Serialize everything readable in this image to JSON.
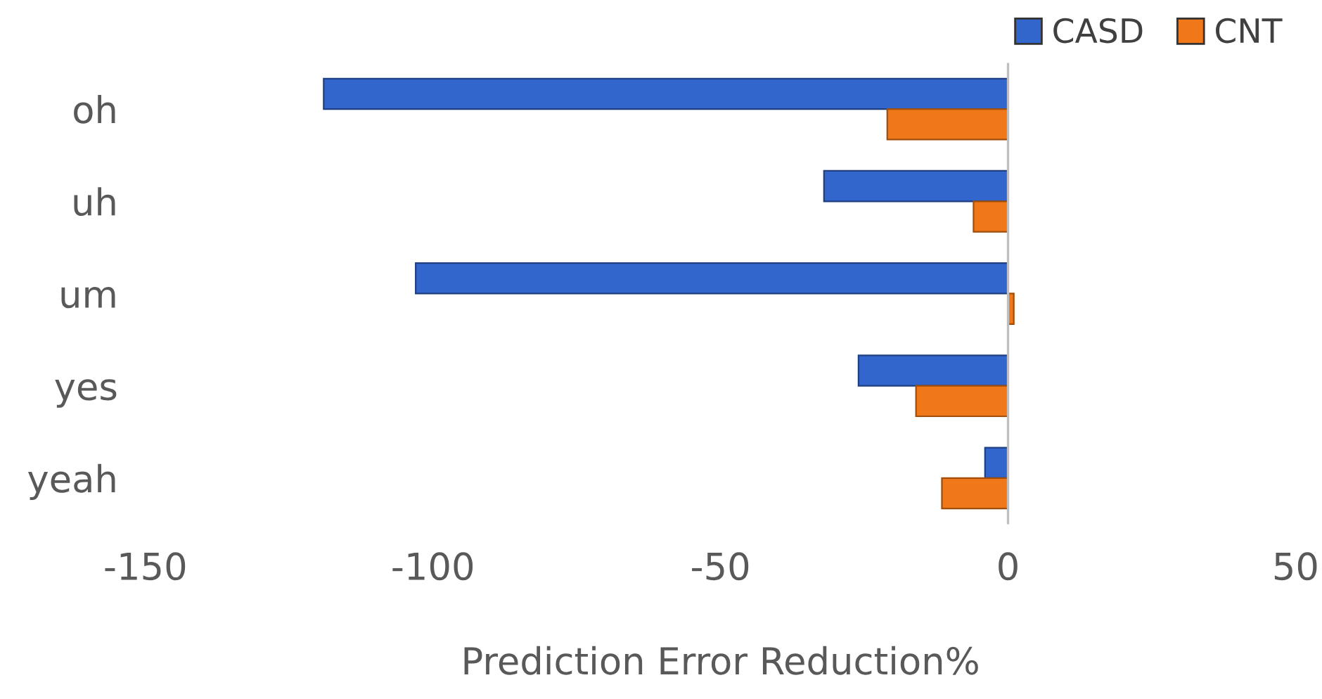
{
  "chart_data": {
    "type": "bar",
    "orientation": "horizontal",
    "xlabel": "Prediction Error Reduction%",
    "categories": [
      "oh",
      "uh",
      "um",
      "yes",
      "yeah"
    ],
    "series": [
      {
        "name": "CASD",
        "color": "#3366cc",
        "values": [
          -119,
          -32,
          -103,
          -26,
          -4
        ]
      },
      {
        "name": "CNT",
        "color": "#f07818",
        "values": [
          -21,
          -6,
          1,
          -16,
          -11.5
        ]
      }
    ],
    "xlim": [
      -150,
      50
    ],
    "xticks": [
      -150,
      -100,
      -50,
      0,
      50
    ],
    "ref_lines": [
      {
        "axis": "x",
        "value": 0,
        "color": "#bfbfbf"
      }
    ],
    "legend": "top right"
  }
}
